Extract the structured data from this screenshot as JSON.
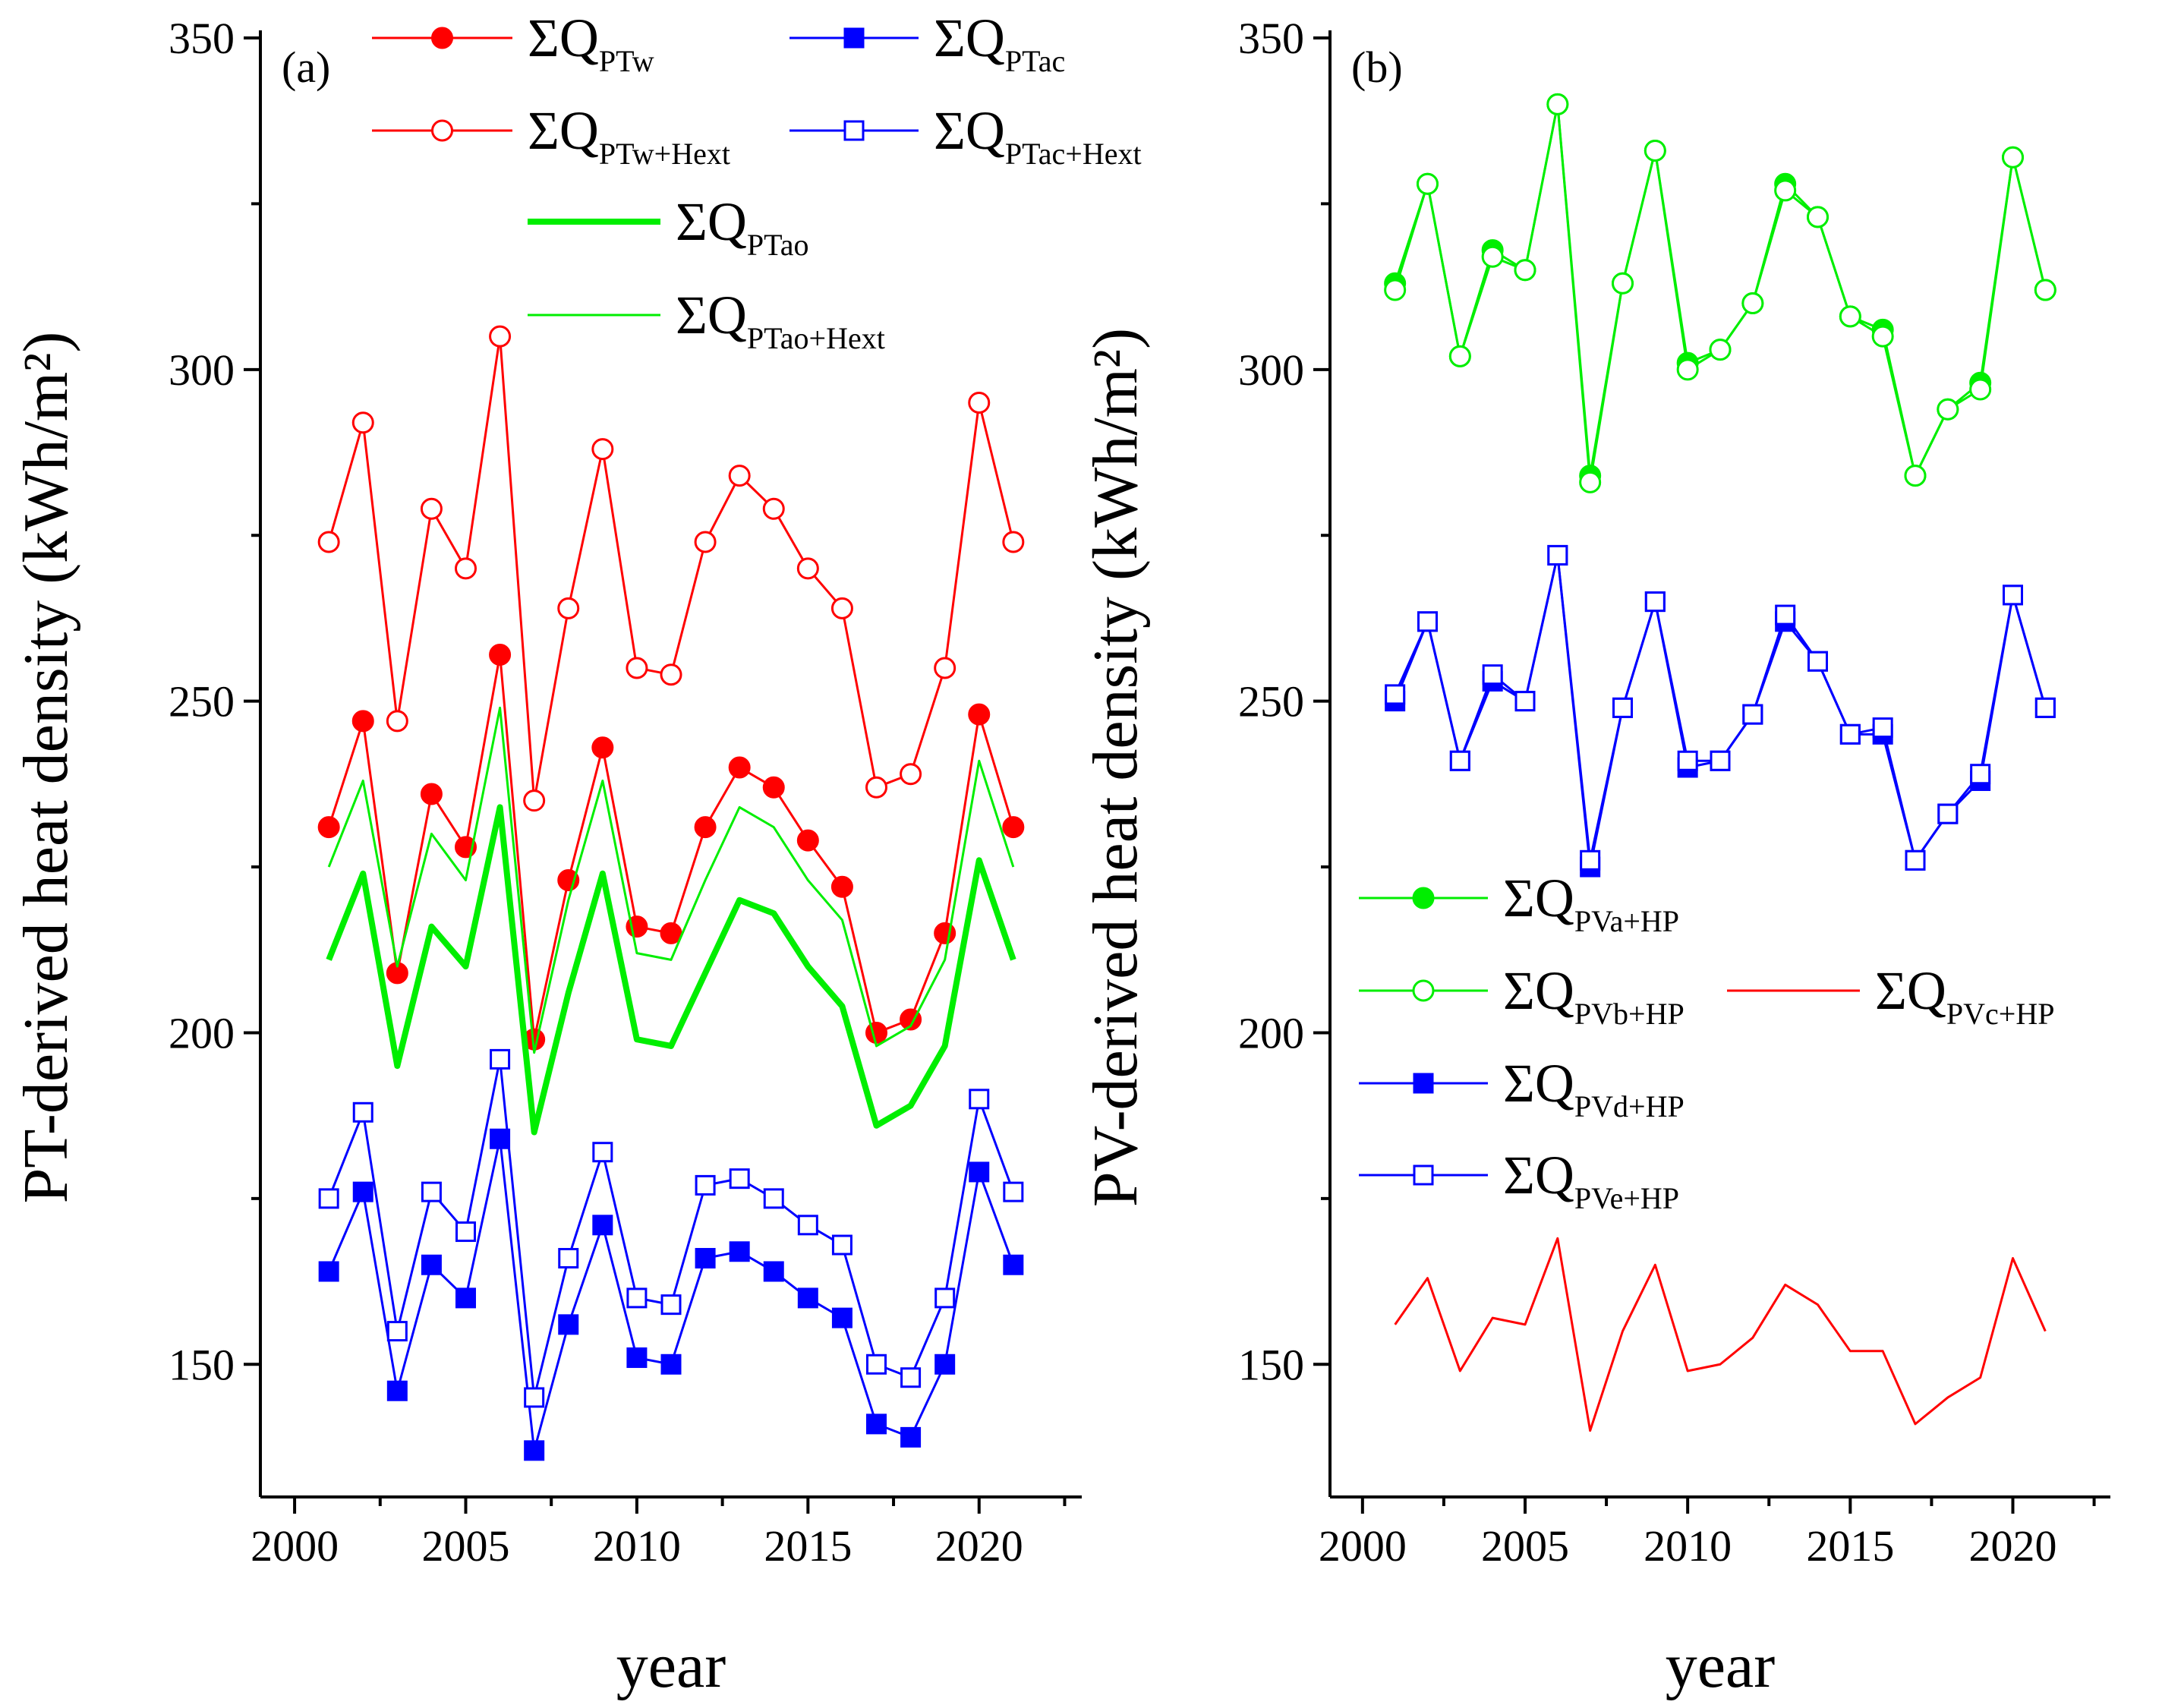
{
  "chart_data": [
    {
      "panel": "(a)",
      "type": "line",
      "ylabel": "PT-derived heat density (kWh/m²)",
      "xlabel": "year",
      "xlim": [
        1999,
        2023
      ],
      "ylim": [
        130,
        350
      ],
      "xticks": [
        "2000",
        "2005",
        "2010",
        "2015",
        "2020"
      ],
      "yticks": [
        "150",
        "200",
        "250",
        "300",
        "350"
      ],
      "x": [
        2001,
        2002,
        2003,
        2004,
        2005,
        2006,
        2007,
        2008,
        2009,
        2010,
        2011,
        2012,
        2013,
        2014,
        2015,
        2016,
        2017,
        2018,
        2019,
        2020,
        2021
      ],
      "series": [
        {
          "name": "ΣQ",
          "sub": "PTw",
          "color": "#ff0000",
          "marker": "circle-filled",
          "width": 3,
          "values": [
            231,
            247,
            209,
            236,
            228,
            257,
            199,
            223,
            243,
            216,
            215,
            231,
            240,
            237,
            229,
            222,
            200,
            202,
            215,
            248,
            231
          ]
        },
        {
          "name": "ΣQ",
          "sub": "PTw+Hext",
          "color": "#ff0000",
          "marker": "circle-open",
          "width": 3,
          "values": [
            274,
            292,
            247,
            279,
            270,
            305,
            235,
            264,
            288,
            255,
            254,
            274,
            284,
            279,
            270,
            264,
            237,
            239,
            255,
            295,
            274
          ]
        },
        {
          "name": "ΣQ",
          "sub": "PTac",
          "color": "#0000ff",
          "marker": "square-filled",
          "width": 3,
          "values": [
            164,
            176,
            146,
            165,
            160,
            184,
            137,
            156,
            171,
            151,
            150,
            166,
            167,
            164,
            160,
            157,
            141,
            139,
            150,
            179,
            165
          ]
        },
        {
          "name": "ΣQ",
          "sub": "PTac+Hext",
          "color": "#0000ff",
          "marker": "square-open",
          "width": 3,
          "values": [
            175,
            188,
            155,
            176,
            170,
            196,
            145,
            166,
            182,
            160,
            159,
            177,
            178,
            175,
            171,
            168,
            150,
            148,
            160,
            190,
            176
          ]
        },
        {
          "name": "ΣQ",
          "sub": "PTao",
          "color": "#00ee00",
          "marker": "none",
          "width": 8,
          "values": [
            211,
            224,
            195,
            216,
            210,
            234,
            185,
            206,
            224,
            199,
            198,
            209,
            220,
            218,
            210,
            204,
            186,
            189,
            198,
            226,
            211
          ]
        },
        {
          "name": "ΣQ",
          "sub": "PTao+Hext",
          "color": "#00ee00",
          "marker": "none",
          "width": 3,
          "values": [
            225,
            238,
            210,
            230,
            223,
            249,
            197,
            220,
            238,
            212,
            211,
            223,
            234,
            231,
            223,
            217,
            198,
            201,
            211,
            241,
            225
          ]
        }
      ]
    },
    {
      "panel": "(b)",
      "type": "line",
      "ylabel": "PV-derived heat density (kWh/m²)",
      "xlabel": "year",
      "xlim": [
        1999,
        2023
      ],
      "ylim": [
        130,
        350
      ],
      "xticks": [
        "2000",
        "2005",
        "2010",
        "2015",
        "2020"
      ],
      "yticks": [
        "150",
        "200",
        "250",
        "300",
        "350"
      ],
      "x": [
        2001,
        2002,
        2003,
        2004,
        2005,
        2006,
        2007,
        2008,
        2009,
        2010,
        2011,
        2012,
        2013,
        2014,
        2015,
        2016,
        2017,
        2018,
        2019,
        2020,
        2021
      ],
      "series": [
        {
          "name": "ΣQ",
          "sub": "PVa+HP",
          "color": "#00ee00",
          "marker": "circle-filled",
          "width": 3,
          "values": [
            313,
            328,
            302,
            318,
            315,
            340,
            284,
            313,
            333,
            301,
            303,
            310,
            328,
            323,
            308,
            306,
            284,
            294,
            298,
            332,
            312
          ]
        },
        {
          "name": "ΣQ",
          "sub": "PVb+HP",
          "color": "#00ee00",
          "marker": "circle-open",
          "width": 3,
          "values": [
            312,
            328,
            302,
            317,
            315,
            340,
            283,
            313,
            333,
            300,
            303,
            310,
            327,
            323,
            308,
            305,
            284,
            294,
            297,
            332,
            312
          ]
        },
        {
          "name": "ΣQ",
          "sub": "PVc+HP",
          "color": "#ff0000",
          "marker": "none",
          "width": 3,
          "values": [
            156,
            163,
            149,
            157,
            156,
            169,
            140,
            155,
            165,
            149,
            150,
            154,
            162,
            159,
            152,
            152,
            141,
            145,
            148,
            166,
            155
          ]
        },
        {
          "name": "ΣQ",
          "sub": "PVd+HP",
          "color": "#0000ff",
          "marker": "square-filled",
          "width": 3,
          "values": [
            250,
            262,
            241,
            253,
            250,
            272,
            225,
            249,
            265,
            240,
            241,
            248,
            262,
            256,
            245,
            245,
            226,
            233,
            238,
            266,
            249
          ]
        },
        {
          "name": "ΣQ",
          "sub": "PVe+HP",
          "color": "#0000ff",
          "marker": "square-open",
          "width": 3,
          "values": [
            251,
            262,
            241,
            254,
            250,
            272,
            226,
            249,
            265,
            241,
            241,
            248,
            263,
            256,
            245,
            246,
            226,
            233,
            239,
            266,
            249
          ]
        }
      ]
    }
  ]
}
